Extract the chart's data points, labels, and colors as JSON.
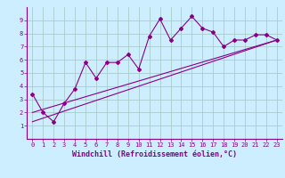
{
  "xlabel": "Windchill (Refroidissement éolien,°C)",
  "ylabel": "",
  "bg_color": "#cceeff",
  "grid_color": "#aacccc",
  "line_color": "#880088",
  "x_data": [
    0,
    1,
    2,
    3,
    4,
    5,
    6,
    7,
    8,
    9,
    10,
    11,
    12,
    13,
    14,
    15,
    16,
    17,
    18,
    19,
    20,
    21,
    22,
    23
  ],
  "y_data": [
    3.4,
    2.0,
    1.3,
    2.7,
    3.8,
    5.8,
    4.6,
    5.8,
    5.8,
    6.4,
    5.3,
    7.8,
    9.1,
    7.5,
    8.4,
    9.3,
    8.4,
    8.1,
    7.0,
    7.5,
    7.5,
    7.9,
    7.9,
    7.5
  ],
  "line1_x": [
    0,
    23
  ],
  "line1_y": [
    2.0,
    7.5
  ],
  "line2_x": [
    0,
    23
  ],
  "line2_y": [
    1.3,
    7.5
  ],
  "xlim": [
    -0.5,
    23.5
  ],
  "ylim": [
    0,
    10
  ],
  "xticks": [
    0,
    1,
    2,
    3,
    4,
    5,
    6,
    7,
    8,
    9,
    10,
    11,
    12,
    13,
    14,
    15,
    16,
    17,
    18,
    19,
    20,
    21,
    22,
    23
  ],
  "yticks": [
    1,
    2,
    3,
    4,
    5,
    6,
    7,
    8,
    9
  ],
  "tick_fontsize": 5.0,
  "xlabel_fontsize": 6.0
}
